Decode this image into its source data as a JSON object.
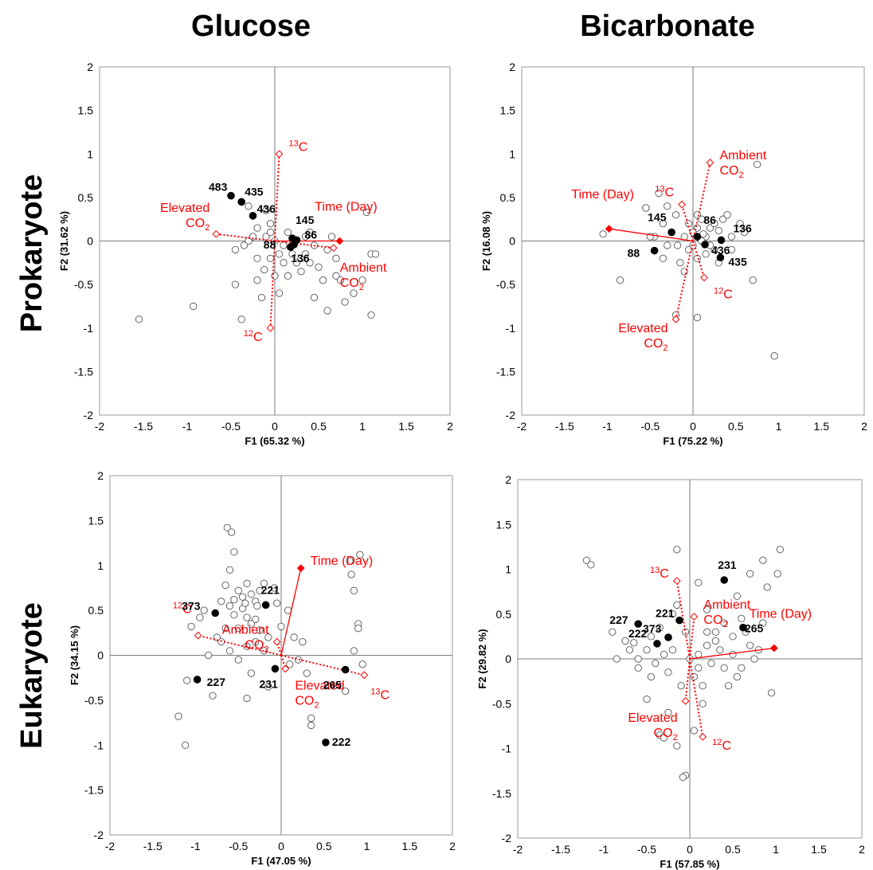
{
  "column_titles": [
    "Glucose",
    "Bicarbonate"
  ],
  "row_titles": [
    "Prokaryote",
    "Eukaryote"
  ],
  "colors": {
    "vector": "#ff0000",
    "labeled_point": "#000000",
    "open_point": "#555555"
  },
  "chart_data": [
    {
      "type": "scatter",
      "panel": "Glucose / Prokaryote",
      "xlabel": "F1 (65.32 %)",
      "ylabel": "F2 (31.62 %)",
      "xlim": [
        -2,
        2
      ],
      "ylim": [
        -2,
        2
      ],
      "xticks": [
        "-2",
        "-1.5",
        "-1",
        "-0.5",
        "0",
        "0.5",
        "1",
        "1.5",
        "2"
      ],
      "yticks": [
        "-2",
        "-1.5",
        "-1",
        "-0.5",
        "0",
        "0.5",
        "1",
        "1.5",
        "2"
      ],
      "vectors": [
        {
          "label": "Time (Day)",
          "x": 0.74,
          "y": 0.0,
          "style": "solid"
        },
        {
          "label": "Elevated CO2",
          "x": -0.67,
          "y": 0.08,
          "style": "dotted"
        },
        {
          "label": "Ambient CO2",
          "x": 0.67,
          "y": -0.08,
          "style": "dotted"
        },
        {
          "label": "13C",
          "x": 0.05,
          "y": 1.0,
          "style": "dotted"
        },
        {
          "label": "12C",
          "x": -0.05,
          "y": -1.0,
          "style": "dotted"
        }
      ],
      "labeled_points": [
        {
          "label": "483",
          "x": -0.5,
          "y": 0.52
        },
        {
          "label": "435",
          "x": -0.38,
          "y": 0.45
        },
        {
          "label": "436",
          "x": -0.25,
          "y": 0.29
        },
        {
          "label": "145",
          "x": 0.2,
          "y": 0.03
        },
        {
          "label": "88",
          "x": 0.18,
          "y": -0.07
        },
        {
          "label": "86",
          "x": 0.25,
          "y": 0.01
        },
        {
          "label": "136",
          "x": 0.22,
          "y": -0.04
        }
      ],
      "open_points": [
        [
          -1.55,
          -0.9
        ],
        [
          -0.93,
          -0.75
        ],
        [
          -0.38,
          -0.9
        ],
        [
          -0.45,
          -0.5
        ],
        [
          -0.3,
          0.4
        ],
        [
          -0.2,
          0.15
        ],
        [
          -0.1,
          0.35
        ],
        [
          -0.05,
          0.2
        ],
        [
          -0.1,
          0.05
        ],
        [
          -0.3,
          0.0
        ],
        [
          -0.45,
          -0.1
        ],
        [
          -0.2,
          -0.2
        ],
        [
          -0.05,
          -0.2
        ],
        [
          0.0,
          0.0
        ],
        [
          0.1,
          -0.25
        ],
        [
          0.15,
          -0.4
        ],
        [
          0.05,
          -0.6
        ],
        [
          0.2,
          -0.15
        ],
        [
          0.3,
          -0.2
        ],
        [
          0.4,
          0.1
        ],
        [
          0.45,
          -0.05
        ],
        [
          0.5,
          -0.3
        ],
        [
          0.55,
          -0.45
        ],
        [
          0.6,
          -0.8
        ],
        [
          0.7,
          -0.4
        ],
        [
          0.75,
          -0.45
        ],
        [
          0.8,
          -0.7
        ],
        [
          0.9,
          -0.6
        ],
        [
          1.0,
          -0.45
        ],
        [
          1.1,
          -0.85
        ],
        [
          1.1,
          -0.15
        ],
        [
          1.15,
          -0.15
        ],
        [
          1.05,
          0.33
        ],
        [
          0.3,
          -0.35
        ],
        [
          0.35,
          -0.15
        ],
        [
          -0.35,
          -0.05
        ],
        [
          -0.2,
          -0.45
        ],
        [
          -0.15,
          -0.65
        ],
        [
          0.0,
          -0.4
        ],
        [
          0.25,
          -0.25
        ],
        [
          -0.05,
          0.1
        ],
        [
          0.05,
          -0.15
        ],
        [
          0.4,
          -0.25
        ],
        [
          0.6,
          -0.1
        ],
        [
          0.65,
          0.05
        ],
        [
          0.7,
          -0.2
        ],
        [
          -0.25,
          0.05
        ],
        [
          0.15,
          0.1
        ],
        [
          0.1,
          -0.05
        ],
        [
          0.35,
          0.05
        ],
        [
          -0.12,
          -0.33
        ],
        [
          0.45,
          -0.65
        ]
      ]
    },
    {
      "type": "scatter",
      "panel": "Bicarbonate / Prokaryote",
      "xlabel": "F1 (75.22 %)",
      "ylabel": "F2 (16.08 %)",
      "xlim": [
        -2,
        2
      ],
      "ylim": [
        -2,
        2
      ],
      "xticks": [
        "-2",
        "-1.5",
        "-1",
        "-0.5",
        "0",
        "0.5",
        "1",
        "1.5",
        "2"
      ],
      "yticks": [
        "-2",
        "-1.5",
        "-1",
        "-0.5",
        "0",
        "0.5",
        "1",
        "1.5",
        "2"
      ],
      "vectors": [
        {
          "label": "Time (Day)",
          "x": -0.98,
          "y": 0.14,
          "style": "solid"
        },
        {
          "label": "Ambient CO2",
          "x": 0.2,
          "y": 0.9,
          "style": "dotted"
        },
        {
          "label": "Elevated CO2",
          "x": -0.2,
          "y": -0.9,
          "style": "dotted"
        },
        {
          "label": "13C",
          "x": -0.13,
          "y": 0.42,
          "style": "dotted"
        },
        {
          "label": "12C",
          "x": 0.13,
          "y": -0.42,
          "style": "dotted"
        }
      ],
      "labeled_points": [
        {
          "label": "145",
          "x": -0.25,
          "y": 0.1
        },
        {
          "label": "86",
          "x": 0.05,
          "y": 0.05
        },
        {
          "label": "136",
          "x": 0.33,
          "y": 0.01
        },
        {
          "label": "88",
          "x": -0.45,
          "y": -0.11
        },
        {
          "label": "436",
          "x": 0.14,
          "y": -0.04
        },
        {
          "label": "435",
          "x": 0.32,
          "y": -0.19
        }
      ],
      "open_points": [
        [
          -1.05,
          0.08
        ],
        [
          -0.85,
          -0.45
        ],
        [
          -0.55,
          0.38
        ],
        [
          -0.4,
          0.55
        ],
        [
          -0.3,
          0.4
        ],
        [
          -0.45,
          0.05
        ],
        [
          -0.35,
          0.2
        ],
        [
          -0.2,
          0.3
        ],
        [
          -0.1,
          0.05
        ],
        [
          -0.05,
          0.2
        ],
        [
          0.05,
          0.15
        ],
        [
          0.1,
          0.25
        ],
        [
          0.15,
          0.05
        ],
        [
          0.2,
          0.15
        ],
        [
          0.25,
          0.2
        ],
        [
          0.3,
          0.12
        ],
        [
          0.35,
          0.25
        ],
        [
          0.4,
          0.3
        ],
        [
          0.45,
          0.05
        ],
        [
          0.55,
          0.2
        ],
        [
          0.6,
          0.1
        ],
        [
          0.0,
          -0.05
        ],
        [
          -0.05,
          -0.1
        ],
        [
          0.05,
          -0.2
        ],
        [
          0.15,
          -0.15
        ],
        [
          0.25,
          -0.1
        ],
        [
          -0.15,
          -0.25
        ],
        [
          -0.3,
          -0.05
        ],
        [
          -0.5,
          0.05
        ],
        [
          -0.35,
          -0.2
        ],
        [
          -0.2,
          -0.85
        ],
        [
          0.05,
          -0.88
        ],
        [
          0.7,
          -0.45
        ],
        [
          0.75,
          0.88
        ],
        [
          0.95,
          -1.32
        ],
        [
          -0.55,
          0.38
        ],
        [
          0.0,
          0.1
        ],
        [
          0.1,
          0.0
        ],
        [
          0.2,
          -0.05
        ],
        [
          0.3,
          -0.25
        ],
        [
          -0.1,
          -0.35
        ],
        [
          0.05,
          0.3
        ],
        [
          0.12,
          0.08
        ],
        [
          -0.18,
          -0.05
        ],
        [
          0.45,
          -0.1
        ]
      ]
    },
    {
      "type": "scatter",
      "panel": "Glucose / Eukaryote",
      "xlabel": "F1 (47.05 %)",
      "ylabel": "F2 (34.15 %)",
      "xlim": [
        -2,
        2
      ],
      "ylim": [
        -2,
        2
      ],
      "xticks": [
        "-2",
        "-1.5",
        "-1",
        "-0.5",
        "0",
        "0.5",
        "1",
        "1.5",
        "2"
      ],
      "yticks": [
        "-2",
        "-1.5",
        "-1",
        "-0.5",
        "0",
        "0.5",
        "1",
        "1.5",
        "2"
      ],
      "vectors": [
        {
          "label": "Time (Day)",
          "x": 0.23,
          "y": 0.97,
          "style": "solid"
        },
        {
          "label": "12C",
          "x": -0.97,
          "y": 0.22,
          "style": "dotted"
        },
        {
          "label": "13C",
          "x": 0.97,
          "y": -0.22,
          "style": "dotted"
        },
        {
          "label": "Ambient CO2",
          "x": -0.05,
          "y": 0.15,
          "style": "dotted"
        },
        {
          "label": "Elevated CO2",
          "x": 0.05,
          "y": -0.15,
          "style": "dotted"
        }
      ],
      "labeled_points": [
        {
          "label": "221",
          "x": -0.18,
          "y": 0.56
        },
        {
          "label": "373",
          "x": -0.77,
          "y": 0.47
        },
        {
          "label": "227",
          "x": -0.98,
          "y": -0.27
        },
        {
          "label": "231",
          "x": -0.07,
          "y": -0.15
        },
        {
          "label": "265",
          "x": 0.75,
          "y": -0.16
        },
        {
          "label": "222",
          "x": 0.52,
          "y": -0.97
        }
      ],
      "open_points": [
        [
          -0.63,
          1.42
        ],
        [
          -0.58,
          1.37
        ],
        [
          -0.55,
          1.15
        ],
        [
          -0.6,
          0.95
        ],
        [
          -0.4,
          0.8
        ],
        [
          -0.2,
          0.8
        ],
        [
          -0.25,
          0.72
        ],
        [
          -0.5,
          0.72
        ],
        [
          -0.35,
          0.68
        ],
        [
          -0.45,
          0.65
        ],
        [
          -0.3,
          0.6
        ],
        [
          -0.6,
          0.55
        ],
        [
          -0.7,
          0.6
        ],
        [
          -0.9,
          0.5
        ],
        [
          -0.55,
          0.45
        ],
        [
          -0.4,
          0.42
        ],
        [
          -0.3,
          0.4
        ],
        [
          -0.5,
          0.3
        ],
        [
          -0.65,
          0.3
        ],
        [
          -0.25,
          0.28
        ],
        [
          -0.05,
          0.58
        ],
        [
          0.0,
          0.32
        ],
        [
          -0.15,
          0.2
        ],
        [
          -0.3,
          0.15
        ],
        [
          -0.4,
          0.1
        ],
        [
          -0.6,
          0.05
        ],
        [
          -0.7,
          0.15
        ],
        [
          -0.5,
          -0.05
        ],
        [
          -0.35,
          -0.2
        ],
        [
          -0.8,
          -0.45
        ],
        [
          -1.2,
          -0.68
        ],
        [
          -1.12,
          -1.0
        ],
        [
          -1.1,
          -0.28
        ],
        [
          -0.4,
          -0.48
        ],
        [
          0.3,
          -0.2
        ],
        [
          0.1,
          -0.1
        ],
        [
          0.35,
          -0.7
        ],
        [
          0.35,
          -0.78
        ],
        [
          0.75,
          -0.4
        ],
        [
          0.85,
          0.05
        ],
        [
          0.95,
          -0.1
        ],
        [
          0.9,
          0.35
        ],
        [
          0.8,
          1.05
        ],
        [
          0.85,
          0.72
        ],
        [
          0.9,
          0.3
        ],
        [
          0.92,
          1.12
        ],
        [
          0.82,
          0.9
        ],
        [
          0.2,
          -0.05
        ],
        [
          -0.2,
          0.05
        ],
        [
          -0.15,
          -0.35
        ],
        [
          -0.08,
          0.75
        ],
        [
          -0.45,
          0.52
        ],
        [
          -0.35,
          0.35
        ],
        [
          -0.75,
          0.2
        ],
        [
          -0.85,
          0.0
        ],
        [
          0.08,
          0.5
        ],
        [
          0.15,
          0.2
        ],
        [
          -0.55,
          0.62
        ],
        [
          -0.65,
          0.78
        ],
        [
          -0.28,
          0.55
        ],
        [
          -0.42,
          0.58
        ],
        [
          -1.05,
          0.32
        ],
        [
          -0.95,
          0.42
        ],
        [
          0.25,
          0.15
        ]
      ]
    },
    {
      "type": "scatter",
      "panel": "Bicarbonate / Eukaryote",
      "xlabel": "F1 (57.85 %)",
      "ylabel": "F2 (29.82 %)",
      "xlim": [
        -2,
        2
      ],
      "ylim": [
        -2,
        2
      ],
      "xticks": [
        "-2",
        "-1.5",
        "-1",
        "-0.5",
        "0",
        "0.5",
        "1",
        "1.5",
        "2"
      ],
      "yticks": [
        "-2",
        "-1.5",
        "-1",
        "-0.5",
        "0",
        "0.5",
        "1",
        "1.5",
        "2"
      ],
      "vectors": [
        {
          "label": "Time (Day)",
          "x": 0.98,
          "y": 0.12,
          "style": "solid"
        },
        {
          "label": "13C",
          "x": -0.15,
          "y": 0.87,
          "style": "dotted"
        },
        {
          "label": "12C",
          "x": 0.15,
          "y": -0.87,
          "style": "dotted"
        },
        {
          "label": "Ambient CO2",
          "x": 0.05,
          "y": 0.47,
          "style": "dotted"
        },
        {
          "label": "Elevated CO2",
          "x": -0.05,
          "y": -0.47,
          "style": "dotted"
        }
      ],
      "labeled_points": [
        {
          "label": "231",
          "x": 0.4,
          "y": 0.88
        },
        {
          "label": "221",
          "x": -0.12,
          "y": 0.43
        },
        {
          "label": "227",
          "x": -0.6,
          "y": 0.39
        },
        {
          "label": "373",
          "x": -0.25,
          "y": 0.24
        },
        {
          "label": "222",
          "x": -0.38,
          "y": 0.17
        },
        {
          "label": "265",
          "x": 0.62,
          "y": 0.35
        }
      ],
      "open_points": [
        [
          -1.2,
          1.1
        ],
        [
          -1.15,
          1.05
        ],
        [
          -0.15,
          1.22
        ],
        [
          0.1,
          0.85
        ],
        [
          0.7,
          0.95
        ],
        [
          0.85,
          1.1
        ],
        [
          1.05,
          1.22
        ],
        [
          1.02,
          0.95
        ],
        [
          0.9,
          0.8
        ],
        [
          0.55,
          0.7
        ],
        [
          0.6,
          0.45
        ],
        [
          0.4,
          0.4
        ],
        [
          0.3,
          0.3
        ],
        [
          0.2,
          0.15
        ],
        [
          0.35,
          0.1
        ],
        [
          0.5,
          0.05
        ],
        [
          0.7,
          0.15
        ],
        [
          0.75,
          0.0
        ],
        [
          0.6,
          -0.1
        ],
        [
          0.4,
          -0.1
        ],
        [
          0.25,
          -0.05
        ],
        [
          0.1,
          -0.1
        ],
        [
          0.05,
          -0.2
        ],
        [
          0.15,
          -0.5
        ],
        [
          -0.1,
          -0.3
        ],
        [
          -0.25,
          -0.15
        ],
        [
          -0.4,
          -0.05
        ],
        [
          -0.6,
          0.0
        ],
        [
          -0.7,
          0.1
        ],
        [
          -0.85,
          0.0
        ],
        [
          -0.9,
          0.3
        ],
        [
          -0.75,
          0.2
        ],
        [
          -0.5,
          0.1
        ],
        [
          -0.35,
          0.35
        ],
        [
          -0.2,
          0.5
        ],
        [
          -0.05,
          0.3
        ],
        [
          -0.5,
          -0.45
        ],
        [
          -0.35,
          -0.85
        ],
        [
          -0.3,
          -0.88
        ],
        [
          -0.15,
          -0.97
        ],
        [
          -0.05,
          -1.3
        ],
        [
          -0.08,
          -1.32
        ],
        [
          0.05,
          -0.8
        ],
        [
          -0.25,
          -0.6
        ],
        [
          0.95,
          -0.38
        ],
        [
          -0.15,
          0.6
        ],
        [
          0.2,
          0.55
        ],
        [
          -0.45,
          0.25
        ],
        [
          -0.65,
          0.18
        ],
        [
          0.3,
          0.2
        ],
        [
          0.5,
          0.25
        ],
        [
          0.65,
          0.3
        ],
        [
          0.8,
          0.1
        ],
        [
          0.15,
          -0.3
        ],
        [
          -0.6,
          -0.1
        ],
        [
          -0.45,
          -0.2
        ],
        [
          0.45,
          -0.3
        ],
        [
          0.2,
          0.3
        ],
        [
          0.55,
          -0.2
        ],
        [
          0.85,
          0.4
        ],
        [
          -0.2,
          0.1
        ],
        [
          -0.3,
          0.05
        ],
        [
          0.0,
          0.0
        ],
        [
          0.1,
          0.05
        ]
      ]
    }
  ]
}
